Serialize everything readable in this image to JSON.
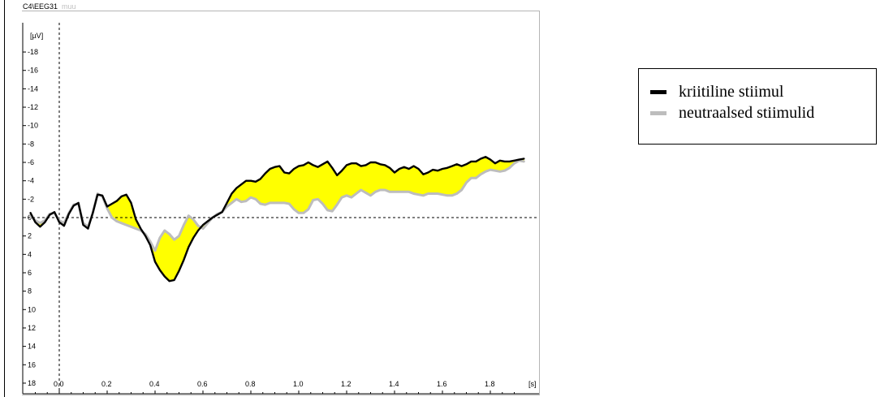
{
  "header": {
    "channel": "C4\\EEG31",
    "condition": "muu"
  },
  "legend": {
    "items": [
      {
        "label": "kriitiline stiimul",
        "color": "#000000"
      },
      {
        "label": "neutraalsed stiimulid",
        "color": "#bdbdbd"
      }
    ]
  },
  "chart_data": {
    "type": "line",
    "title": "",
    "xlabel": "",
    "ylabel": "",
    "y_unit_label": "[µV]",
    "x_unit_label": "[s]",
    "x_range": [
      -0.12,
      1.94
    ],
    "ylim": [
      -20,
      20
    ],
    "y_inverted": true,
    "grid": false,
    "fill_between_color": "#ffff00",
    "x_tick_labels": [
      "0.0",
      "0.2",
      "0.4",
      "0.6",
      "0.8",
      "1.0",
      "1.2",
      "1.4",
      "1.6",
      "1.8"
    ],
    "y_tick_labels": [
      "-18",
      "-16",
      "-14",
      "-12",
      "-10",
      "-8",
      "-6",
      "-4",
      "-2",
      "0",
      "2",
      "4",
      "6",
      "8",
      "10",
      "12",
      "14",
      "16",
      "18"
    ],
    "series": [
      {
        "name": "kriitiline stiimul",
        "color": "#000000",
        "x": [
          -0.12,
          -0.1,
          -0.08,
          -0.06,
          -0.04,
          -0.02,
          0.0,
          0.02,
          0.04,
          0.06,
          0.08,
          0.1,
          0.12,
          0.14,
          0.16,
          0.18,
          0.2,
          0.22,
          0.24,
          0.26,
          0.28,
          0.3,
          0.32,
          0.34,
          0.36,
          0.38,
          0.4,
          0.42,
          0.44,
          0.46,
          0.48,
          0.5,
          0.52,
          0.54,
          0.56,
          0.58,
          0.6,
          0.62,
          0.64,
          0.66,
          0.68,
          0.7,
          0.72,
          0.74,
          0.76,
          0.78,
          0.8,
          0.82,
          0.84,
          0.86,
          0.88,
          0.9,
          0.92,
          0.94,
          0.96,
          0.98,
          1.0,
          1.02,
          1.04,
          1.06,
          1.08,
          1.1,
          1.12,
          1.14,
          1.16,
          1.18,
          1.2,
          1.22,
          1.24,
          1.26,
          1.28,
          1.3,
          1.32,
          1.34,
          1.36,
          1.38,
          1.4,
          1.42,
          1.44,
          1.46,
          1.48,
          1.5,
          1.52,
          1.54,
          1.56,
          1.58,
          1.6,
          1.62,
          1.64,
          1.66,
          1.68,
          1.7,
          1.72,
          1.74,
          1.76,
          1.78,
          1.8,
          1.82,
          1.84,
          1.86,
          1.88,
          1.9,
          1.92,
          1.94
        ],
        "values": [
          -0.5,
          0.5,
          1.0,
          0.5,
          -0.3,
          -0.6,
          0.5,
          0.9,
          -0.4,
          -1.3,
          -1.6,
          0.8,
          1.2,
          -0.5,
          -2.5,
          -2.4,
          -1.2,
          -1.5,
          -1.8,
          -2.3,
          -2.5,
          -1.6,
          0.2,
          1.2,
          2.0,
          3.0,
          4.8,
          5.7,
          6.4,
          6.9,
          6.8,
          5.8,
          4.6,
          3.2,
          2.2,
          1.4,
          0.8,
          0.4,
          0.0,
          -0.3,
          -0.6,
          -1.6,
          -2.6,
          -3.2,
          -3.6,
          -4.0,
          -4.0,
          -3.9,
          -4.2,
          -4.8,
          -5.3,
          -5.5,
          -5.6,
          -4.9,
          -4.8,
          -5.3,
          -5.6,
          -5.7,
          -6.0,
          -5.7,
          -5.5,
          -5.8,
          -6.1,
          -5.4,
          -4.6,
          -5.1,
          -5.7,
          -5.9,
          -5.9,
          -5.6,
          -5.7,
          -6.0,
          -6.0,
          -5.8,
          -5.7,
          -5.4,
          -4.9,
          -5.3,
          -5.5,
          -5.3,
          -5.6,
          -5.3,
          -4.7,
          -4.9,
          -5.2,
          -5.1,
          -5.3,
          -5.4,
          -5.6,
          -5.8,
          -5.6,
          -5.8,
          -6.1,
          -6.1,
          -6.4,
          -6.6,
          -6.3,
          -5.9,
          -6.2,
          -6.1,
          -6.1,
          -6.2,
          -6.3,
          -6.4
        ]
      },
      {
        "name": "neutraalsed stiimulid",
        "color": "#bdbdbd",
        "x": [
          -0.12,
          -0.1,
          -0.08,
          -0.06,
          -0.04,
          -0.02,
          0.0,
          0.02,
          0.04,
          0.06,
          0.08,
          0.1,
          0.12,
          0.14,
          0.16,
          0.18,
          0.2,
          0.22,
          0.24,
          0.26,
          0.28,
          0.3,
          0.32,
          0.34,
          0.36,
          0.38,
          0.4,
          0.42,
          0.44,
          0.46,
          0.48,
          0.5,
          0.52,
          0.54,
          0.56,
          0.58,
          0.6,
          0.62,
          0.64,
          0.66,
          0.68,
          0.7,
          0.72,
          0.74,
          0.76,
          0.78,
          0.8,
          0.82,
          0.84,
          0.86,
          0.88,
          0.9,
          0.92,
          0.94,
          0.96,
          0.98,
          1.0,
          1.02,
          1.04,
          1.06,
          1.08,
          1.1,
          1.12,
          1.14,
          1.16,
          1.18,
          1.2,
          1.22,
          1.24,
          1.26,
          1.28,
          1.3,
          1.32,
          1.34,
          1.36,
          1.38,
          1.4,
          1.42,
          1.44,
          1.46,
          1.48,
          1.5,
          1.52,
          1.54,
          1.56,
          1.58,
          1.6,
          1.62,
          1.64,
          1.66,
          1.68,
          1.7,
          1.72,
          1.74,
          1.76,
          1.78,
          1.8,
          1.82,
          1.84,
          1.86,
          1.88,
          1.9,
          1.92,
          1.94
        ],
        "values": [
          -0.2,
          0.3,
          0.6,
          0.3,
          -0.4,
          -0.5,
          0.3,
          0.6,
          -0.5,
          -1.4,
          -1.5,
          0.6,
          1.0,
          -0.5,
          -2.6,
          -2.3,
          -1.0,
          0.0,
          0.4,
          0.6,
          0.8,
          1.0,
          1.2,
          1.4,
          1.8,
          2.6,
          3.6,
          2.2,
          1.4,
          1.8,
          2.4,
          2.0,
          0.8,
          -0.2,
          0.2,
          0.9,
          1.2,
          0.6,
          0.0,
          -0.4,
          -0.6,
          -1.2,
          -1.6,
          -2.0,
          -1.7,
          -1.8,
          -2.2,
          -2.0,
          -1.5,
          -1.4,
          -1.6,
          -1.6,
          -1.6,
          -1.6,
          -1.5,
          -0.9,
          -0.5,
          -0.5,
          -0.9,
          -1.9,
          -2.0,
          -1.5,
          -0.8,
          -0.7,
          -1.4,
          -2.2,
          -2.4,
          -2.2,
          -2.6,
          -3.0,
          -2.7,
          -2.4,
          -2.8,
          -3.0,
          -3.0,
          -2.8,
          -2.8,
          -2.8,
          -2.8,
          -2.8,
          -2.6,
          -2.5,
          -2.4,
          -2.6,
          -2.6,
          -2.6,
          -2.5,
          -2.4,
          -2.4,
          -2.6,
          -3.0,
          -3.8,
          -4.3,
          -4.3,
          -4.7,
          -5.0,
          -5.2,
          -5.1,
          -5.0,
          -5.1,
          -5.4,
          -5.9,
          -6.2,
          -6.1
        ]
      }
    ]
  }
}
